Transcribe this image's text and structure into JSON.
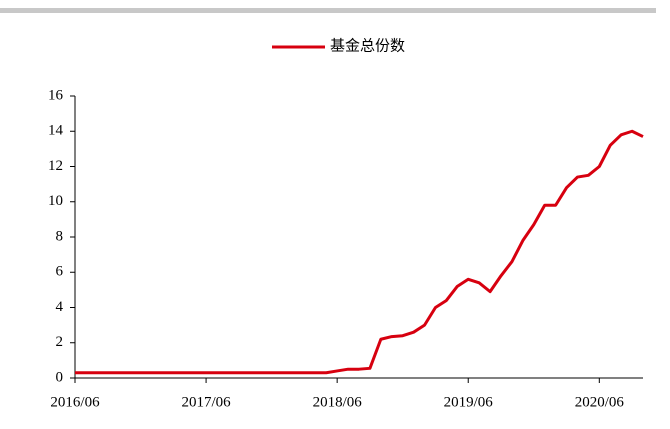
{
  "chart_data": {
    "type": "line",
    "x": [
      "2016/06",
      "2016/07",
      "2016/08",
      "2016/09",
      "2016/10",
      "2016/11",
      "2016/12",
      "2017/01",
      "2017/02",
      "2017/03",
      "2017/04",
      "2017/05",
      "2017/06",
      "2017/07",
      "2017/08",
      "2017/09",
      "2017/10",
      "2017/11",
      "2017/12",
      "2018/01",
      "2018/02",
      "2018/03",
      "2018/04",
      "2018/05",
      "2018/06",
      "2018/07",
      "2018/08",
      "2018/09",
      "2018/10",
      "2018/11",
      "2018/12",
      "2019/01",
      "2019/02",
      "2019/03",
      "2019/04",
      "2019/05",
      "2019/06",
      "2019/07",
      "2019/08",
      "2019/09",
      "2019/10",
      "2019/11",
      "2019/12",
      "2020/01",
      "2020/02",
      "2020/03",
      "2020/04",
      "2020/05",
      "2020/06",
      "2020/07",
      "2020/08",
      "2020/09",
      "2020/10"
    ],
    "series": [
      {
        "name": "基金总份数",
        "color": "#d7000f",
        "values": [
          0.3,
          0.3,
          0.3,
          0.3,
          0.3,
          0.3,
          0.3,
          0.3,
          0.3,
          0.3,
          0.3,
          0.3,
          0.3,
          0.3,
          0.3,
          0.3,
          0.3,
          0.3,
          0.3,
          0.3,
          0.3,
          0.3,
          0.3,
          0.3,
          0.4,
          0.5,
          0.5,
          0.55,
          2.2,
          2.35,
          2.4,
          2.6,
          3.0,
          4.0,
          4.4,
          5.2,
          5.6,
          5.4,
          4.9,
          5.8,
          6.6,
          7.8,
          8.7,
          9.8,
          9.8,
          10.8,
          11.4,
          11.5,
          12.0,
          13.2,
          13.8,
          14.0,
          13.7
        ]
      }
    ],
    "xlim": [
      "2016/06",
      "2020/10"
    ],
    "xticks": [
      "2016/06",
      "2017/06",
      "2018/06",
      "2019/06",
      "2020/06"
    ],
    "ylim": [
      0,
      16
    ],
    "yticks": [
      0,
      2,
      4,
      6,
      8,
      10,
      12,
      14,
      16
    ],
    "legend": "top"
  }
}
